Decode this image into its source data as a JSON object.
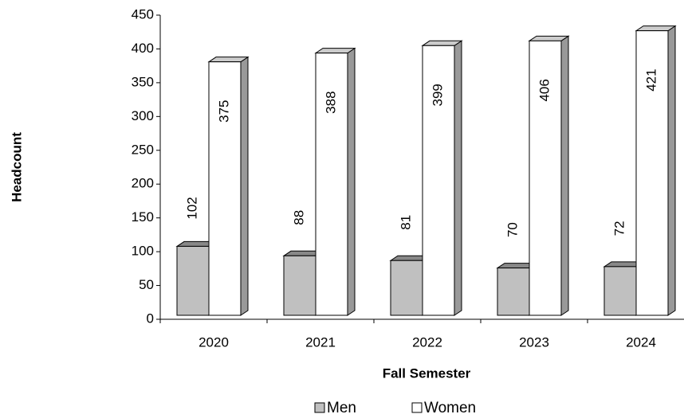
{
  "chart_data": {
    "type": "bar3d",
    "x_label": "Fall Semester",
    "y_label": "Headcount",
    "categories": [
      "2020",
      "2021",
      "2022",
      "2023",
      "2024"
    ],
    "series": [
      {
        "name": "Men",
        "color": "#c0c0c0",
        "values": [
          102,
          88,
          81,
          70,
          72
        ]
      },
      {
        "name": "Women",
        "color": "#ffffff",
        "values": [
          375,
          388,
          399,
          406,
          421
        ]
      }
    ],
    "ylim": [
      0,
      450
    ],
    "yticks": [
      0,
      50,
      100,
      150,
      200,
      250,
      300,
      350,
      400,
      450
    ],
    "legend": "bottom"
  }
}
